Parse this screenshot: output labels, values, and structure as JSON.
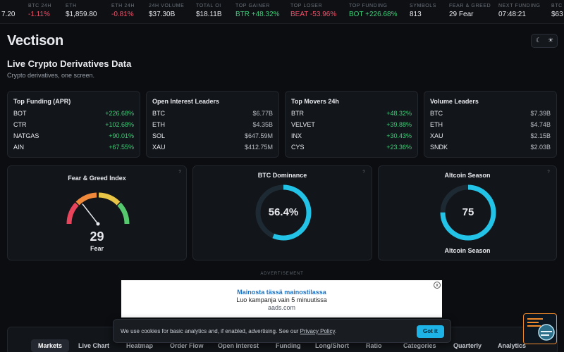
{
  "ticker": [
    {
      "label": "",
      "value": "7.20",
      "trend": ""
    },
    {
      "label": "BTC 24H",
      "value": "-1.11%",
      "trend": "down"
    },
    {
      "label": "ETH",
      "value": "$1,859.80",
      "trend": ""
    },
    {
      "label": "ETH 24H",
      "value": "-0.81%",
      "trend": "down"
    },
    {
      "label": "24H VOLUME",
      "value": "$37.30B",
      "trend": ""
    },
    {
      "label": "TOTAL OI",
      "value": "$18.11B",
      "trend": ""
    },
    {
      "label": "TOP GAINER",
      "value": "BTR +48.32%",
      "trend": "up"
    },
    {
      "label": "TOP LOSER",
      "value": "BEAT -53.96%",
      "trend": "down"
    },
    {
      "label": "TOP FUNDING",
      "value": "BOT +226.68%",
      "trend": "up"
    },
    {
      "label": "SYMBOLS",
      "value": "813",
      "trend": ""
    },
    {
      "label": "FEAR & GREED",
      "value": "29 Fear",
      "trend": ""
    },
    {
      "label": "NEXT FUNDING",
      "value": "07:48:21",
      "trend": ""
    },
    {
      "label": "BTC",
      "value": "$63",
      "trend": ""
    }
  ],
  "brand": "Vectison",
  "theme_icons": {
    "moon": "moon-icon",
    "sun": "sun-icon"
  },
  "hero": {
    "title": "Live Crypto Derivatives Data",
    "subtitle": "Crypto derivatives, one screen."
  },
  "cards": [
    {
      "title": "Top Funding (APR)",
      "rows": [
        {
          "symbol": "BOT",
          "value": "+226.68%",
          "trend": "up"
        },
        {
          "symbol": "CTR",
          "value": "+102.68%",
          "trend": "up"
        },
        {
          "symbol": "NATGAS",
          "value": "+90.01%",
          "trend": "up"
        },
        {
          "symbol": "AIN",
          "value": "+67.55%",
          "trend": "up"
        }
      ]
    },
    {
      "title": "Open Interest Leaders",
      "rows": [
        {
          "symbol": "BTC",
          "value": "$6.77B",
          "trend": ""
        },
        {
          "symbol": "ETH",
          "value": "$4.35B",
          "trend": ""
        },
        {
          "symbol": "SOL",
          "value": "$647.59M",
          "trend": ""
        },
        {
          "symbol": "XAU",
          "value": "$412.75M",
          "trend": ""
        }
      ]
    },
    {
      "title": "Top Movers 24h",
      "rows": [
        {
          "symbol": "BTR",
          "value": "+48.32%",
          "trend": "up"
        },
        {
          "symbol": "VELVET",
          "value": "+39.88%",
          "trend": "up"
        },
        {
          "symbol": "INX",
          "value": "+30.43%",
          "trend": "up"
        },
        {
          "symbol": "CYS",
          "value": "+23.36%",
          "trend": "up"
        }
      ]
    },
    {
      "title": "Volume Leaders",
      "rows": [
        {
          "symbol": "BTC",
          "value": "$7.39B",
          "trend": ""
        },
        {
          "symbol": "ETH",
          "value": "$4.74B",
          "trend": ""
        },
        {
          "symbol": "XAU",
          "value": "$2.15B",
          "trend": ""
        },
        {
          "symbol": "SNDK",
          "value": "$2.03B",
          "trend": ""
        }
      ]
    }
  ],
  "fear_greed": {
    "title": "Fear & Greed Index",
    "value": 29,
    "value_text": "29",
    "label": "Fear",
    "help": "?"
  },
  "btc_dominance": {
    "title": "BTC Dominance",
    "percent": 56.4,
    "value_text": "56.4%",
    "help": "?",
    "color": "#22c3e6"
  },
  "altcoin_season": {
    "title": "Altcoin Season",
    "value": 75,
    "value_text": "75",
    "label": "Altcoin Season",
    "help": "?",
    "color": "#22c3e6"
  },
  "ad": {
    "label": "ADVERTISEMENT",
    "headline": "Mainosta tässä mainostilassa",
    "line2": "Luo kampanja vain 5 minuutissa",
    "domain": "aads.com",
    "close": "x"
  },
  "tabs": [
    {
      "label": "Markets",
      "active": true
    },
    {
      "label": "Live Chart",
      "active": false
    },
    {
      "label": "Heatmap",
      "active": false
    },
    {
      "label": "Order Flow",
      "active": false
    },
    {
      "label": "Open Interest",
      "active": false
    },
    {
      "label": "Funding",
      "active": false
    },
    {
      "label": "Long/Short",
      "active": false
    },
    {
      "label": "Ratio",
      "active": false
    },
    {
      "label": "Categories",
      "active": false
    },
    {
      "label": "Quarterly",
      "active": false
    },
    {
      "label": "Analytics",
      "active": false
    }
  ],
  "cookie": {
    "text": "We use cookies for basic analytics and, if enabled, advertising. See our ",
    "link": "Privacy Policy",
    "end": ".",
    "button": "Got it"
  },
  "colors": {
    "up": "#3ecf7a",
    "down": "#f4506a",
    "accent": "#22c3e6",
    "ring_track": "#1d2a33"
  }
}
